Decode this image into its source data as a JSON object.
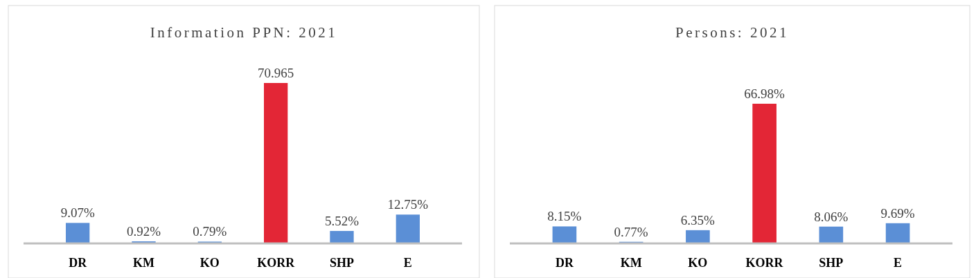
{
  "chart_data": [
    {
      "type": "bar",
      "title": "Information PPN: 2021",
      "categories": [
        "DR",
        "KM",
        "KO",
        "KORR",
        "SHP",
        "E"
      ],
      "values": [
        9.07,
        0.92,
        0.79,
        70.965,
        5.52,
        12.75
      ],
      "value_labels": [
        "9.07%",
        "0.92%",
        "0.79%",
        "70.965",
        "5.52%",
        "12.75%"
      ],
      "colors": [
        "#5b8fd6",
        "#5b8fd6",
        "#5b8fd6",
        "#e32636",
        "#5b8fd6",
        "#5b8fd6"
      ]
    },
    {
      "type": "bar",
      "title": "Persons: 2021",
      "categories": [
        "DR",
        "KM",
        "KO",
        "KORR",
        "SHP",
        "E"
      ],
      "values": [
        8.15,
        0.77,
        6.35,
        66.98,
        8.06,
        9.69
      ],
      "value_labels": [
        "8.15%",
        "0.77%",
        "6.35%",
        "66.98%",
        "8.06%",
        "9.69%"
      ],
      "colors": [
        "#5b8fd6",
        "#5b8fd6",
        "#5b8fd6",
        "#e32636",
        "#5b8fd6",
        "#5b8fd6"
      ]
    }
  ]
}
